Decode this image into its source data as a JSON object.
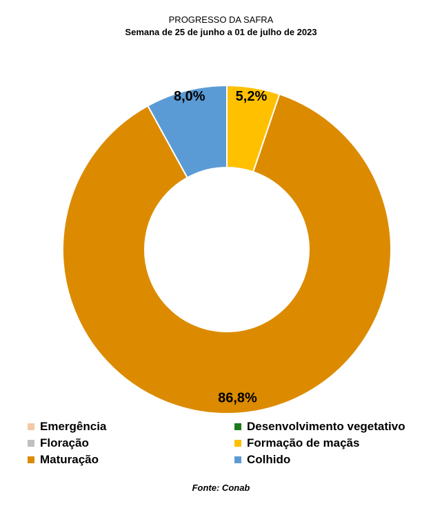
{
  "header": {
    "title": "PROGRESSO DA SAFRA",
    "subtitle": "Semana de 25 de junho a 01 de julho de 2023"
  },
  "chart_data": {
    "type": "pie",
    "subtype": "doughnut",
    "categories": [
      "Emergência",
      "Desenvolvimento vegetativo",
      "Floração",
      "Formação de maçãs",
      "Maturação",
      "Colhido"
    ],
    "values": [
      0,
      0,
      0,
      5.2,
      86.8,
      8.0
    ],
    "data_labels": [
      "",
      "",
      "",
      "5,2%",
      "86,8%",
      "8,0%"
    ],
    "colors": [
      "#f4c9a8",
      "#1a7a1a",
      "#bfbfbf",
      "#ffc000",
      "#dc8b00",
      "#5b9bd5"
    ],
    "title": "PROGRESSO DA SAFRA",
    "subtitle": "Semana de 25 de junho a 01 de julho de 2023",
    "legend_position": "bottom"
  },
  "legend": {
    "items": [
      {
        "label": "Emergência",
        "color": "#f4c9a8"
      },
      {
        "label": "Desenvolvimento vegetativo",
        "color": "#1a7a1a"
      },
      {
        "label": "Floração",
        "color": "#bfbfbf"
      },
      {
        "label": "Formação de maçãs",
        "color": "#ffc000"
      },
      {
        "label": "Maturação",
        "color": "#dc8b00"
      },
      {
        "label": "Colhido",
        "color": "#5b9bd5"
      }
    ]
  },
  "footer": {
    "source": "Fonte: Conab"
  }
}
